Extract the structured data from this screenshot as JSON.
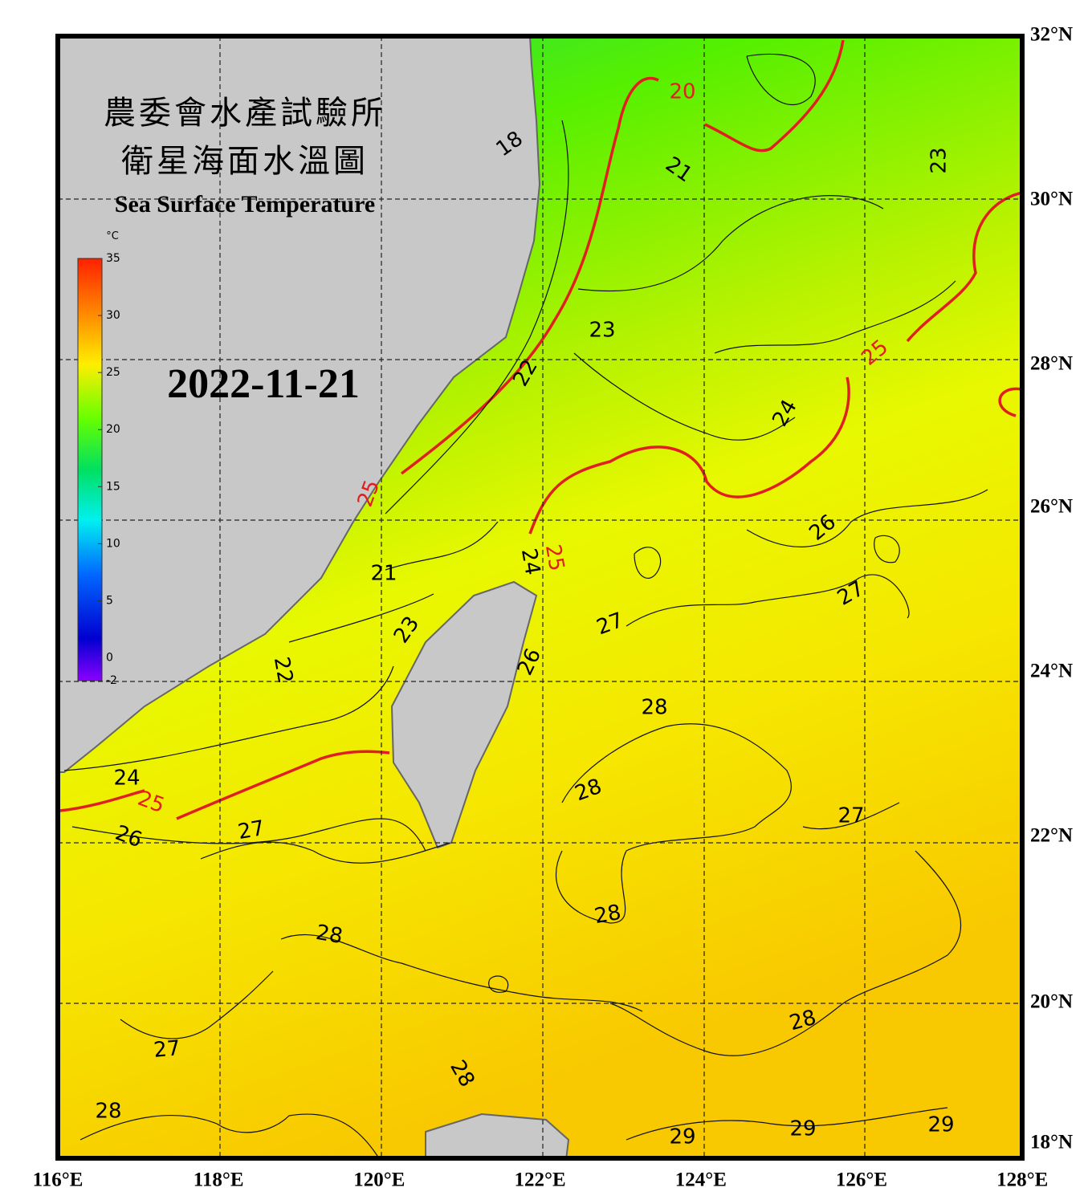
{
  "header": {
    "title_zh": "農委會水產試驗所",
    "subtitle_zh": "衛星海面水溫圖",
    "title_en": "Sea Surface Temperature",
    "date": "2022-11-21"
  },
  "colorbar": {
    "unit": "°C",
    "ticks": [
      35,
      30,
      25,
      20,
      15,
      10,
      5,
      0,
      -2
    ]
  },
  "lon_labels": [
    "116°E",
    "118°E",
    "120°E",
    "122°E",
    "124°E",
    "126°E",
    "128°E"
  ],
  "lat_labels": [
    "32°N",
    "30°N",
    "28°N",
    "26°N",
    "24°N",
    "22°N",
    "20°N",
    "18°N"
  ],
  "contour_labels": [
    "18",
    "20",
    "21",
    "23",
    "23",
    "22",
    "25",
    "24",
    "25",
    "26",
    "24",
    "25",
    "21",
    "27",
    "27",
    "23",
    "26",
    "22",
    "28",
    "24",
    "25",
    "28",
    "27",
    "27",
    "26",
    "28",
    "28",
    "28",
    "27",
    "28",
    "28",
    "29",
    "29",
    "29"
  ]
}
